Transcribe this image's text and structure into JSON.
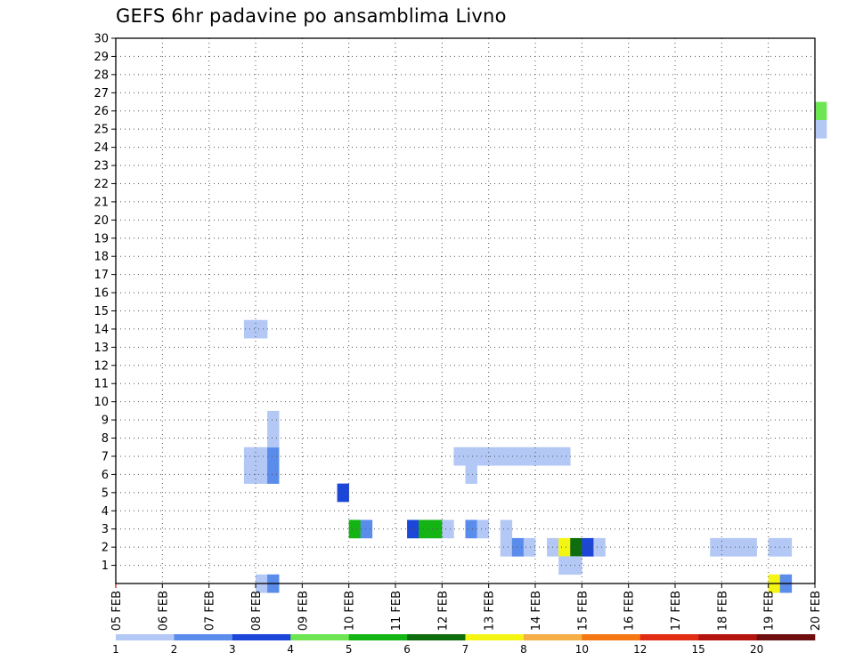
{
  "chart_data": {
    "type": "heatmap",
    "title": "GEFS 6hr padavine po ansamblima Livno",
    "xlabel": "",
    "ylabel": "",
    "x_ticks": [
      "05 FEB",
      "06 FEB",
      "07 FEB",
      "08 FEB",
      "09 FEB",
      "10 FEB",
      "11 FEB",
      "12 FEB",
      "13 FEB",
      "14 FEB",
      "15 FEB",
      "16 FEB",
      "17 FEB",
      "18 FEB",
      "19 FEB",
      "20 FEB"
    ],
    "y_ticks": [
      1,
      2,
      3,
      4,
      5,
      6,
      7,
      8,
      9,
      10,
      11,
      12,
      13,
      14,
      15,
      16,
      17,
      18,
      19,
      20,
      21,
      22,
      23,
      24,
      25,
      26,
      27,
      28,
      29,
      30
    ],
    "x_range_days": [
      0,
      15
    ],
    "y_range": [
      0,
      30
    ],
    "grid": true,
    "colorbar": {
      "labels": [
        "1",
        "2",
        "3",
        "4",
        "5",
        "6",
        "7",
        "8",
        "10",
        "12",
        "15",
        "20"
      ],
      "colors": [
        "#b4c8f5",
        "#5a8cec",
        "#1b46d8",
        "#6ee653",
        "#14b414",
        "#0e6e0e",
        "#f5f514",
        "#f5af46",
        "#f57814",
        "#e12d14",
        "#b4140e",
        "#6e0e0e"
      ]
    },
    "cells": [
      [
        3.0,
        0,
        0
      ],
      [
        3.25,
        0,
        1
      ],
      [
        14.0,
        0,
        6
      ],
      [
        14.25,
        0,
        1
      ],
      [
        5.0,
        3,
        4
      ],
      [
        5.25,
        3,
        1
      ],
      [
        6.25,
        3,
        2
      ],
      [
        6.5,
        3,
        4
      ],
      [
        6.75,
        3,
        4
      ],
      [
        7.0,
        3,
        0
      ],
      [
        7.5,
        3,
        1
      ],
      [
        7.75,
        3,
        0
      ],
      [
        8.25,
        3,
        0
      ],
      [
        8.25,
        2,
        0
      ],
      [
        8.5,
        2,
        1
      ],
      [
        8.75,
        2,
        0
      ],
      [
        9.25,
        2,
        0
      ],
      [
        9.5,
        2,
        6
      ],
      [
        9.75,
        2,
        5
      ],
      [
        10.0,
        2,
        2
      ],
      [
        10.25,
        2,
        0
      ],
      [
        12.75,
        2,
        0
      ],
      [
        13.0,
        2,
        0
      ],
      [
        13.25,
        2,
        0
      ],
      [
        13.5,
        2,
        0
      ],
      [
        14.0,
        2,
        0
      ],
      [
        14.25,
        2,
        0
      ],
      [
        9.5,
        1,
        0
      ],
      [
        9.75,
        1,
        0
      ],
      [
        2.75,
        14,
        0
      ],
      [
        3.0,
        14,
        0
      ],
      [
        15.0,
        26,
        3
      ],
      [
        15.0,
        25,
        0
      ],
      [
        4.75,
        5,
        2
      ],
      [
        3.0,
        6,
        0
      ],
      [
        3.0,
        7,
        0
      ],
      [
        2.75,
        6,
        0
      ],
      [
        2.75,
        7,
        0
      ],
      [
        3.25,
        6,
        1
      ],
      [
        3.25,
        7,
        1
      ],
      [
        3.25,
        8,
        0
      ],
      [
        3.25,
        9,
        0
      ],
      [
        7.5,
        6,
        0
      ],
      [
        7.5,
        7,
        0
      ],
      [
        7.75,
        7,
        0
      ],
      [
        8.0,
        7,
        0
      ],
      [
        8.25,
        7,
        0
      ],
      [
        8.5,
        7,
        0
      ],
      [
        8.75,
        7,
        0
      ],
      [
        9.0,
        7,
        0
      ],
      [
        9.25,
        7,
        0
      ],
      [
        9.5,
        7,
        0
      ],
      [
        7.25,
        7,
        0
      ]
    ]
  }
}
